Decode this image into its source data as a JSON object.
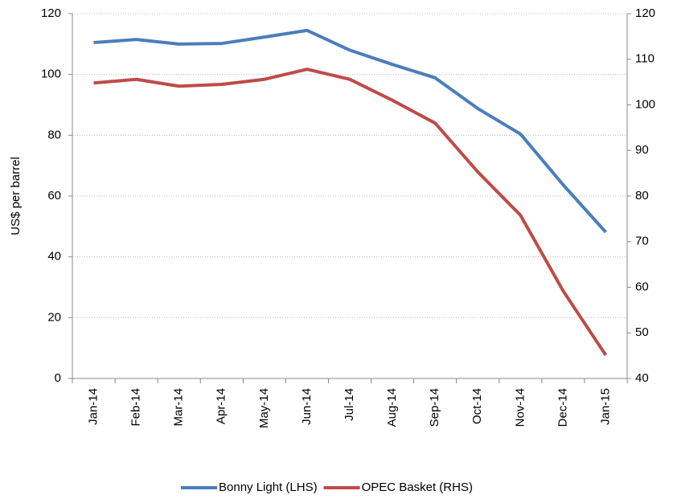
{
  "chart_data": {
    "type": "line",
    "y_label": "US$ per barrel",
    "categories": [
      "Jan-14",
      "Feb-14",
      "Mar-14",
      "Apr-14",
      "May-14",
      "Jun-14",
      "Jul-14",
      "Aug-14",
      "Sep-14",
      "Oct-14",
      "Nov-14",
      "Dec-14",
      "Jan-15"
    ],
    "series": [
      {
        "name": "Bonny Light (LHS)",
        "color": "#4a7ebb",
        "values": [
          110.5,
          111.5,
          110,
          110.2,
          112.3,
          114.5,
          108,
          103.3,
          98.9,
          88.8,
          80.4,
          63.7,
          48.1
        ]
      },
      {
        "name": "OPEC Basket (RHS)",
        "color": "#be4b48",
        "axis": "y2",
        "values": [
          104.8,
          105.6,
          104.1,
          104.5,
          105.6,
          107.8,
          105.6,
          101,
          96,
          85.3,
          75.8,
          59.2,
          45.1
        ]
      }
    ],
    "ylim": [
      0,
      120
    ],
    "yticks": [
      0,
      20,
      40,
      60,
      80,
      100,
      120
    ],
    "y2lim": [
      40,
      120
    ],
    "y2ticks": [
      40,
      50,
      60,
      70,
      80,
      90,
      100,
      110,
      120
    ],
    "grid": true,
    "legend": "bottom"
  }
}
